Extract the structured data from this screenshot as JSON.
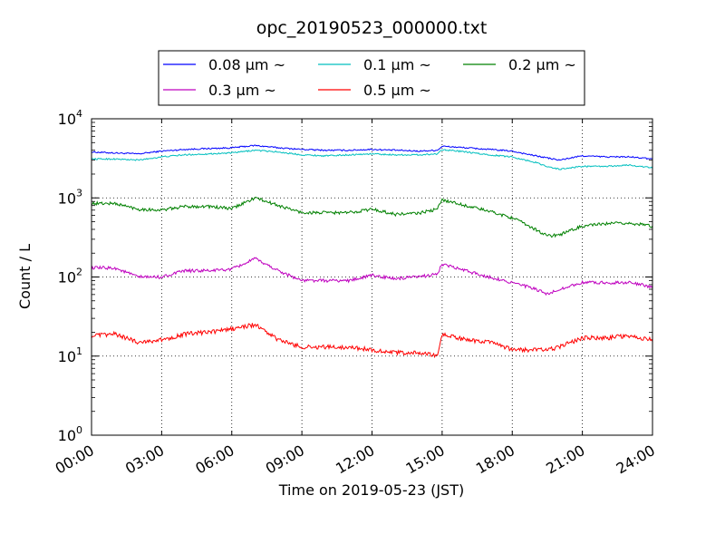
{
  "chart_data": {
    "type": "line",
    "title": "opc_20190523_000000.txt",
    "xlabel": "Time on 2019-05-23 (JST)",
    "ylabel": "Count / L",
    "y_scale": "log",
    "ylim_exp": [
      0,
      4
    ],
    "y_ticks": [
      {
        "base": "10",
        "exp": "0"
      },
      {
        "base": "10",
        "exp": "1"
      },
      {
        "base": "10",
        "exp": "2"
      },
      {
        "base": "10",
        "exp": "3"
      },
      {
        "base": "10",
        "exp": "4"
      }
    ],
    "x_ticks": [
      "00:00",
      "03:00",
      "06:00",
      "09:00",
      "12:00",
      "15:00",
      "18:00",
      "21:00",
      "24:00"
    ],
    "xlim_hours": [
      0,
      24
    ],
    "grid": true,
    "legend_position": "top-center",
    "series": [
      {
        "name": "0.08 μm ~",
        "color": "#0000ff",
        "x_hours": [
          0,
          1,
          2,
          3,
          4,
          5,
          6,
          7,
          8,
          9,
          10,
          11,
          12,
          13,
          14,
          14.8,
          15,
          16,
          17,
          18,
          19,
          19.5,
          20,
          21,
          22,
          23,
          24
        ],
        "values": [
          3800,
          3700,
          3600,
          3900,
          4100,
          4200,
          4300,
          4600,
          4300,
          4100,
          4000,
          4000,
          4100,
          4000,
          3900,
          4000,
          4500,
          4300,
          4100,
          3900,
          3400,
          3200,
          3000,
          3400,
          3300,
          3300,
          3100
        ]
      },
      {
        "name": "0.1 μm ~",
        "color": "#00bfbf",
        "x_hours": [
          0,
          1,
          2,
          3,
          4,
          5,
          6,
          7,
          8,
          9,
          10,
          11,
          12,
          13,
          14,
          14.8,
          15,
          16,
          17,
          18,
          19,
          19.5,
          20,
          21,
          22,
          23,
          24
        ],
        "values": [
          3100,
          3100,
          3000,
          3300,
          3500,
          3600,
          3700,
          4000,
          3800,
          3500,
          3400,
          3500,
          3600,
          3500,
          3500,
          3600,
          4100,
          3800,
          3500,
          3300,
          2800,
          2500,
          2300,
          2500,
          2500,
          2600,
          2400
        ]
      },
      {
        "name": "0.2 μm ~",
        "color": "#008000",
        "x_hours": [
          0,
          1,
          2,
          3,
          4,
          5,
          6,
          7,
          8,
          9,
          10,
          11,
          12,
          13,
          14,
          14.8,
          15,
          16,
          17,
          18,
          19,
          19.5,
          20,
          21,
          22,
          23,
          24
        ],
        "values": [
          850,
          850,
          720,
          700,
          780,
          780,
          730,
          1000,
          800,
          650,
          650,
          650,
          720,
          620,
          640,
          720,
          950,
          800,
          680,
          560,
          400,
          330,
          340,
          440,
          470,
          480,
          440
        ]
      },
      {
        "name": "0.3 μm ~",
        "color": "#bf00bf",
        "x_hours": [
          0,
          1,
          2,
          3,
          4,
          5,
          6,
          7,
          8,
          9,
          10,
          11,
          12,
          13,
          14,
          14.8,
          15,
          16,
          17,
          18,
          19,
          19.5,
          20,
          21,
          22,
          23,
          24
        ],
        "values": [
          130,
          130,
          100,
          100,
          120,
          120,
          125,
          170,
          120,
          90,
          90,
          90,
          105,
          95,
          100,
          110,
          145,
          120,
          100,
          85,
          70,
          60,
          70,
          85,
          85,
          85,
          75
        ]
      },
      {
        "name": "0.5 μm ~",
        "color": "#ff0000",
        "x_hours": [
          0,
          1,
          2,
          3,
          4,
          5,
          6,
          7,
          8,
          9,
          10,
          11,
          12,
          13,
          14,
          14.8,
          15,
          16,
          17,
          18,
          19,
          19.5,
          20,
          21,
          22,
          23,
          24
        ],
        "values": [
          18,
          19,
          15,
          16,
          19,
          20,
          22,
          25,
          16,
          13,
          13,
          13,
          12,
          11,
          11,
          10,
          19,
          16,
          15,
          12,
          12,
          12,
          13,
          17,
          17,
          18,
          16
        ]
      }
    ]
  }
}
